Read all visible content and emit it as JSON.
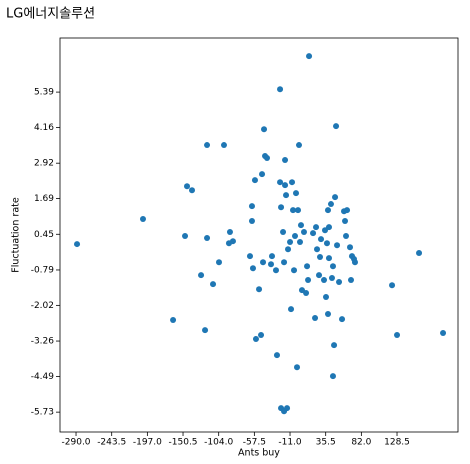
{
  "chart_data": {
    "type": "scatter",
    "title": "LG에너지솔루션",
    "x_label": "Ants buy",
    "y_label": "Fluctuation rate",
    "color": "#1f77b4",
    "xlim": [
      -310.9,
      208.0
    ],
    "ylim": [
      -6.42,
      7.27
    ],
    "xticks": [
      {
        "value": -290.0,
        "label": "-290.0"
      },
      -243.5,
      {
        "value": -197.0,
        "label": "-197.0"
      },
      -150.5,
      {
        "value": -104.0,
        "label": "-104.0"
      },
      -57.5,
      {
        "value": -11.0,
        "label": "-11.0"
      },
      35.5,
      {
        "value": 82.0,
        "label": "82.0"
      },
      128.5
    ],
    "yticks": [
      -5.73,
      -4.49,
      -3.26,
      -2.02,
      -0.79,
      0.45,
      1.69,
      2.92,
      4.16,
      5.39
    ],
    "x": [
      -288.7,
      -202.7,
      -163.5,
      -147.9,
      -145.3,
      -138.8,
      -127.0,
      -121.8,
      -119.2,
      -119.2,
      -111.4,
      -103.6,
      -97.1,
      -90.6,
      -89.3,
      -85.4,
      -63.2,
      -60.6,
      -60.6,
      -59.3,
      -56.7,
      -55.4,
      -51.4,
      -48.8,
      -47.5,
      -46.2,
      -44.9,
      -43.6,
      -41.0,
      -35.8,
      -34.5,
      -29.3,
      -28.0,
      -24.0,
      -24.0,
      -22.7,
      -20.1,
      -18.8,
      -17.5,
      -17.5,
      -16.2,
      -22.7,
      -18.8,
      -14.9,
      -13.6,
      -11.0,
      -9.7,
      -8.4,
      -7.1,
      -5.8,
      -4.5,
      -3.2,
      -1.9,
      -0.6,
      0.7,
      2.0,
      3.3,
      4.6,
      7.2,
      9.9,
      11.2,
      12.5,
      13.8,
      19.0,
      21.6,
      22.9,
      24.2,
      26.8,
      28.1,
      29.4,
      33.3,
      34.6,
      35.9,
      37.2,
      38.5,
      38.5,
      39.8,
      39.8,
      42.4,
      43.7,
      45.0,
      45.0,
      46.4,
      47.7,
      49.0,
      50.3,
      52.9,
      56.8,
      59.4,
      60.7,
      62.0,
      63.3,
      67.2,
      68.5,
      69.8,
      72.4,
      73.7,
      122.0,
      128.5,
      157.2,
      188.5
    ],
    "values": [
      0.11,
      0.98,
      -2.53,
      0.39,
      2.12,
      1.98,
      -0.97,
      -2.88,
      0.32,
      3.55,
      -1.28,
      -0.52,
      3.55,
      0.14,
      0.53,
      0.21,
      -0.31,
      0.91,
      1.43,
      -0.73,
      2.33,
      -3.19,
      -1.46,
      -3.05,
      2.54,
      -0.52,
      4.1,
      3.17,
      3.1,
      -0.59,
      -0.31,
      -0.8,
      -3.75,
      5.49,
      2.26,
      1.39,
      0.53,
      -0.52,
      2.16,
      3.03,
      1.81,
      -5.59,
      -5.7,
      -5.59,
      -0.07,
      0.18,
      -2.15,
      2.26,
      1.29,
      -0.8,
      0.39,
      1.88,
      -4.17,
      1.29,
      3.55,
      0.18,
      0.77,
      -1.49,
      0.53,
      -1.59,
      -0.66,
      -1.14,
      6.64,
      0.49,
      -2.46,
      0.7,
      -0.07,
      -0.97,
      -0.34,
      0.28,
      -1.14,
      0.59,
      -1.73,
      0.14,
      1.29,
      -2.32,
      0.7,
      -0.38,
      1.5,
      -1.07,
      -4.48,
      -0.66,
      -3.4,
      1.74,
      4.21,
      0.07,
      -1.21,
      -2.5,
      1.25,
      0.91,
      0.39,
      1.29,
      0.0,
      -1.14,
      -0.31,
      -0.41,
      -0.52,
      -1.32,
      -3.05,
      -0.2,
      -2.98
    ]
  }
}
